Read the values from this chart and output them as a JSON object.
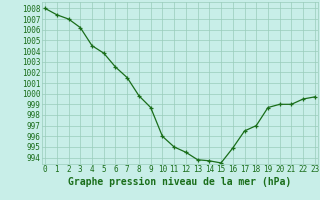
{
  "x": [
    0,
    1,
    2,
    3,
    4,
    5,
    6,
    7,
    8,
    9,
    10,
    11,
    12,
    13,
    14,
    15,
    16,
    17,
    18,
    19,
    20,
    21,
    22,
    23
  ],
  "y": [
    1008.0,
    1007.4,
    1007.0,
    1006.2,
    1004.5,
    1003.8,
    1002.5,
    1001.5,
    999.8,
    998.7,
    996.0,
    995.0,
    994.5,
    993.8,
    993.7,
    993.5,
    994.9,
    996.5,
    997.0,
    998.7,
    999.0,
    999.0,
    999.5,
    999.7
  ],
  "line_color": "#1a6e1a",
  "marker": "+",
  "marker_color": "#1a6e1a",
  "bg_color": "#c8eee8",
  "grid_color": "#99ccbb",
  "xlabel": "Graphe pression niveau de la mer (hPa)",
  "xlabel_color": "#1a6e1a",
  "tick_color": "#1a6e1a",
  "ylim_min": 993.4,
  "ylim_max": 1008.6,
  "xlim_min": -0.3,
  "xlim_max": 23.3,
  "yticks": [
    994,
    995,
    996,
    997,
    998,
    999,
    1000,
    1001,
    1002,
    1003,
    1004,
    1005,
    1006,
    1007,
    1008
  ],
  "xticks": [
    0,
    1,
    2,
    3,
    4,
    5,
    6,
    7,
    8,
    9,
    10,
    11,
    12,
    13,
    14,
    15,
    16,
    17,
    18,
    19,
    20,
    21,
    22,
    23
  ],
  "fontsize_xlabel": 7,
  "fontsize_tick": 5.5
}
